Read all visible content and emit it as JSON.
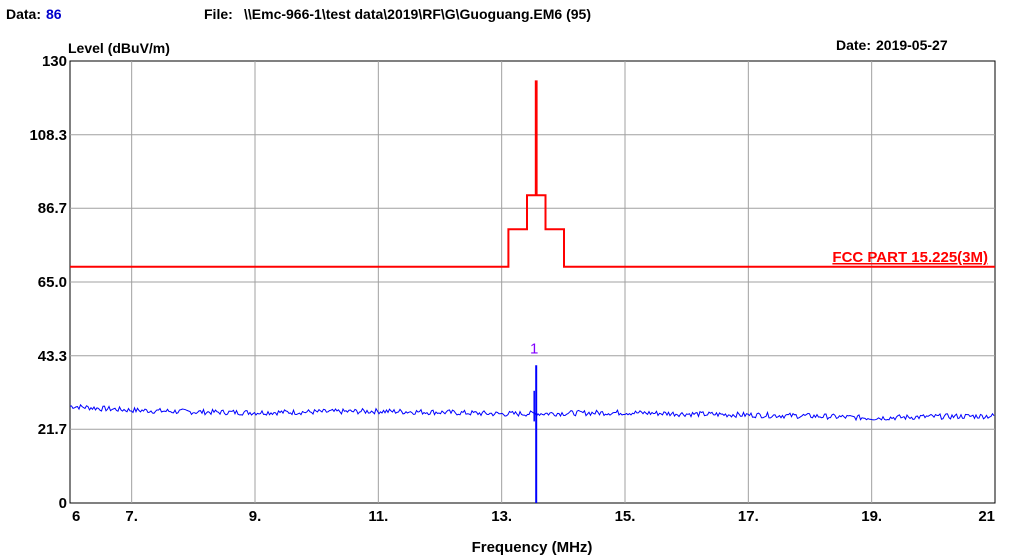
{
  "header": {
    "data_label": "Data:",
    "data_value": "86",
    "file_label": "File:",
    "file_path": "\\\\Emc-966-1\\test data\\2019\\RF\\G\\Guoguang.EM6  (95)",
    "date_label": "Date:",
    "date_value": "2019-05-27"
  },
  "colors": {
    "measurement": "#0000ff",
    "limit": "#ff0000",
    "marker": "#8000ff",
    "data_value": "#0000cc",
    "grid": "#a0a0a0"
  },
  "chart_data": {
    "type": "line",
    "xlabel": "Frequency (MHz)",
    "ylabel": "Level (dBuV/m)",
    "xlim": [
      6,
      21
    ],
    "ylim": [
      0,
      130
    ],
    "x_ticks": [
      6,
      7,
      9,
      11,
      13,
      15,
      17,
      19,
      21
    ],
    "x_tick_labels": [
      "6",
      "7.",
      "9.",
      "11.",
      "13.",
      "15.",
      "17.",
      "19.",
      "21"
    ],
    "y_ticks": [
      0,
      21.7,
      43.3,
      65.0,
      86.7,
      108.3,
      130
    ],
    "y_tick_labels": [
      "0",
      "21.7",
      "43.3",
      "65.0",
      "86.7",
      "108.3",
      "130"
    ],
    "grid": true,
    "series": [
      {
        "name": "FCC PART 15.225(3M)",
        "style": "limit",
        "x": [
          6,
          13.11,
          13.11,
          13.41,
          13.41,
          13.553,
          13.553,
          13.567,
          13.567,
          13.71,
          13.71,
          14.01,
          14.01,
          21
        ],
        "y": [
          69.5,
          69.5,
          80.5,
          80.5,
          90.5,
          90.5,
          124,
          124,
          90.5,
          90.5,
          80.5,
          80.5,
          69.5,
          69.5
        ]
      },
      {
        "style": "measurement",
        "x": [
          6,
          6.5,
          7,
          8,
          9,
          10,
          11,
          12,
          13,
          13.5,
          13.56,
          14,
          15,
          16,
          17,
          18,
          19,
          20,
          21
        ],
        "y": [
          28.5,
          27.8,
          27.3,
          26.8,
          26.6,
          26.8,
          27.0,
          26.7,
          26.2,
          26.3,
          26.3,
          26.4,
          26.6,
          26.2,
          25.9,
          25.6,
          25.0,
          25.4,
          25.6
        ],
        "peak": {
          "x": 13.56,
          "y": 40.5
        }
      }
    ],
    "markers": [
      {
        "label": "1",
        "x": 13.56,
        "y": 40.5
      }
    ],
    "annotations": [
      {
        "text": "FCC PART 15.225(3M)",
        "color": "#ff0000"
      }
    ]
  }
}
